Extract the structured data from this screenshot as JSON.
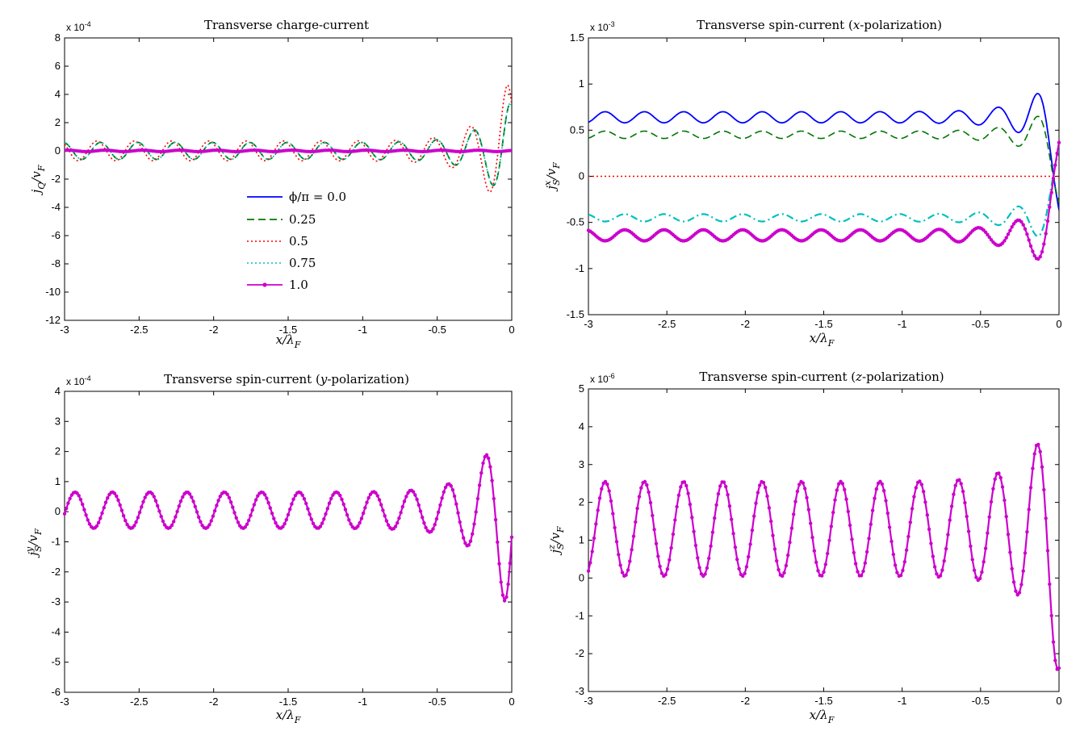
{
  "chart_data": [
    {
      "type": "line",
      "title": "Transverse charge-current",
      "xlabel": "x/λF",
      "ylabel": "jQ/vF",
      "exponent": "x 10",
      "exponent_power": "-4",
      "xlim": [
        -3,
        0
      ],
      "ylim": [
        -12,
        8
      ],
      "xticks": [
        -3,
        -2.5,
        -2,
        -1.5,
        -1,
        -0.5,
        0
      ],
      "xtick_labels": [
        "-3",
        "-2.5",
        "-2",
        "-1.5",
        "-1",
        "-0.5",
        "0"
      ],
      "yticks": [
        -12,
        -10,
        -8,
        -6,
        -4,
        -2,
        0,
        2,
        4,
        6,
        8
      ],
      "ytick_labels": [
        "-12",
        "-10",
        "-8",
        "-6",
        "-4",
        "-2",
        "0",
        "2",
        "4",
        "6",
        "8"
      ],
      "legend": [
        "ϕ/π = 0.0",
        "0.25",
        "0.5",
        "0.75",
        "1.0"
      ],
      "legend_position": "center",
      "series": [
        {
          "style": "solid",
          "color": "#0000ff",
          "width": 2.2,
          "markers": false,
          "sample_step": 0.005,
          "oscillation": {
            "offset": 0,
            "amp": 0.08,
            "growth": 0,
            "k": 25.1,
            "phase": 0.5
          }
        },
        {
          "style": "dashed",
          "color": "#007700",
          "width": 1.8,
          "markers": false,
          "sample_step": 0.005,
          "oscillation": {
            "offset": 0,
            "amp": 0.6,
            "growth": 4.0,
            "k": 25.1,
            "phase": 1.7
          }
        },
        {
          "style": "dotted",
          "color": "#ff0000",
          "width": 1.6,
          "markers": false,
          "sample_step": 0.005,
          "oscillation": {
            "offset": 0,
            "amp": 0.7,
            "growth": 5.5,
            "k": 25.1,
            "phase": 2.3
          }
        },
        {
          "style": "dotted",
          "color": "#00c0c0",
          "width": 1.6,
          "markers": false,
          "sample_step": 0.005,
          "oscillation": {
            "offset": 0,
            "amp": 0.6,
            "growth": 4.0,
            "k": 25.1,
            "phase": 1.7
          }
        },
        {
          "style": "solid",
          "color": "#cc00cc",
          "width": 4,
          "markers": false,
          "sample_step": 0.005,
          "oscillation": {
            "offset": 0,
            "amp": 0.05,
            "growth": 0,
            "k": 25.1,
            "phase": 0.9
          }
        }
      ]
    },
    {
      "type": "line",
      "title": "Transverse spin-current (x-polarization)",
      "xlabel": "x/λF",
      "ylabel": "jSx/vF",
      "exponent": "x 10",
      "exponent_power": "-3",
      "xlim": [
        -3,
        0
      ],
      "ylim": [
        -1.5,
        1.5
      ],
      "xticks": [
        -3,
        -2.5,
        -2,
        -1.5,
        -1,
        -0.5,
        0
      ],
      "xtick_labels": [
        "-3",
        "-2.5",
        "-2",
        "-1.5",
        "-1",
        "-0.5",
        "0"
      ],
      "yticks": [
        -1.5,
        -1,
        -0.5,
        0,
        0.5,
        1,
        1.5
      ],
      "ytick_labels": [
        "-1.5",
        "-1",
        "-0.5",
        "0",
        "0.5",
        "1",
        "1.5"
      ],
      "series": [
        {
          "style": "solid",
          "color": "#0000ff",
          "width": 1.8,
          "markers": false,
          "sample_step": 0.005,
          "oscillation": {
            "offset": 0.64,
            "amp": 0.06,
            "growth": 0.5,
            "k": 25.1,
            "phase": -1.2
          }
        },
        {
          "style": "dashed",
          "color": "#007700",
          "width": 1.6,
          "markers": false,
          "sample_step": 0.005,
          "oscillation": {
            "offset": 0.45,
            "amp": 0.04,
            "growth": 0.4,
            "k": 25.1,
            "phase": -1.2
          }
        },
        {
          "style": "dotted",
          "color": "#ff0000",
          "width": 1.6,
          "markers": false,
          "sample_step": 0.005,
          "oscillation": {
            "offset": 0,
            "amp": 0,
            "growth": 0,
            "k": 25.1,
            "phase": 0
          }
        },
        {
          "style": "dashdot",
          "color": "#00c0c0",
          "width": 2.2,
          "markers": false,
          "sample_step": 0.005,
          "oscillation": {
            "offset": -0.45,
            "amp": 0.04,
            "growth": 0.4,
            "k": 25.1,
            "phase": 1.94
          }
        },
        {
          "style": "solid",
          "color": "#cc00cc",
          "width": 2.2,
          "markers": true,
          "sample_step": 0.012,
          "oscillation": {
            "offset": -0.64,
            "amp": 0.06,
            "growth": 0.5,
            "k": 25.1,
            "phase": 1.94
          }
        }
      ]
    },
    {
      "type": "line",
      "title": "Transverse spin-current (y-polarization)",
      "xlabel": "x/λF",
      "ylabel": "jSy/vF",
      "exponent": "x 10",
      "exponent_power": "-4",
      "xlim": [
        -3,
        0
      ],
      "ylim": [
        -6,
        4
      ],
      "xticks": [
        -3,
        -2.5,
        -2,
        -1.5,
        -1,
        -0.5,
        0
      ],
      "xtick_labels": [
        "-3",
        "-2.5",
        "-2",
        "-1.5",
        "-1",
        "-0.5",
        "0"
      ],
      "yticks": [
        -6,
        -5,
        -4,
        -3,
        -2,
        -1,
        0,
        1,
        2,
        3,
        4
      ],
      "ytick_labels": [
        "-6",
        "-5",
        "-4",
        "-3",
        "-2",
        "-1",
        "0",
        "1",
        "2",
        "3",
        "4"
      ],
      "series": [
        {
          "style": "solid",
          "color": "#cc00cc",
          "width": 2.2,
          "markers": true,
          "sample_step": 0.012,
          "oscillation": {
            "offset": 0.05,
            "amp": 0.6,
            "growth": 3.5,
            "k": 25.1,
            "phase": -0.3
          }
        }
      ]
    },
    {
      "type": "line",
      "title": "Transverse spin-current (z-polarization)",
      "xlabel": "x/λF",
      "ylabel": "jSz/vF",
      "exponent": "x 10",
      "exponent_power": "-6",
      "xlim": [
        -3,
        0
      ],
      "ylim": [
        -3,
        5
      ],
      "xticks": [
        -3,
        -2.5,
        -2,
        -1.5,
        -1,
        -0.5,
        0
      ],
      "xtick_labels": [
        "-3",
        "-2.5",
        "-2",
        "-1.5",
        "-1",
        "-0.5",
        "0"
      ],
      "yticks": [
        -3,
        -2,
        -1,
        0,
        1,
        2,
        3,
        4,
        5
      ],
      "ytick_labels": [
        "-3",
        "-2",
        "-1",
        "0",
        "1",
        "2",
        "3",
        "4",
        "5"
      ],
      "series": [
        {
          "style": "solid",
          "color": "#cc00cc",
          "width": 2.2,
          "markers": true,
          "sample_step": 0.012,
          "oscillation": {
            "offset": 1.3,
            "amp": 1.25,
            "growth": 2.4,
            "k": 25.1,
            "phase": -1.2
          }
        }
      ]
    }
  ]
}
